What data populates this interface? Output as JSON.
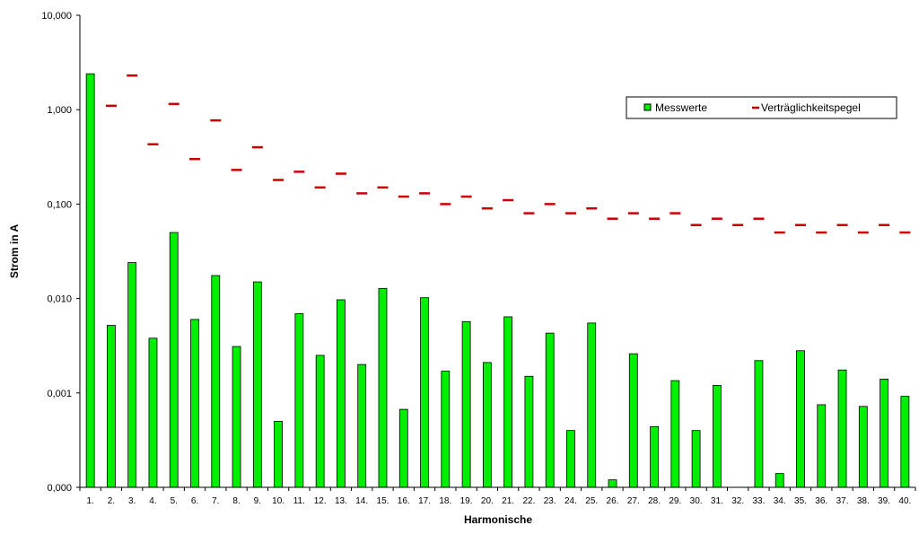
{
  "chart_data": {
    "type": "bar",
    "y_scale": "log",
    "ylim": [
      0.0001,
      10
    ],
    "yticks": [
      "10,000",
      "1,000",
      "0,100",
      "0,010",
      "0,001",
      "0,000"
    ],
    "xlabel": "Harmonische",
    "ylabel": "Strom in A",
    "categories": [
      "1.",
      "2.",
      "3.",
      "4.",
      "5.",
      "6.",
      "7.",
      "8.",
      "9.",
      "10.",
      "11.",
      "12.",
      "13.",
      "14.",
      "15.",
      "16.",
      "17.",
      "18.",
      "19.",
      "20.",
      "21.",
      "22.",
      "23.",
      "24.",
      "25.",
      "26.",
      "27.",
      "28.",
      "29.",
      "30.",
      "31.",
      "32.",
      "33.",
      "34.",
      "35.",
      "36.",
      "37.",
      "38.",
      "39.",
      "40."
    ],
    "legend_position": "top-right",
    "series": [
      {
        "name": "Messwerte",
        "kind": "bar",
        "color": "#00ee00",
        "values": [
          2.4,
          0.0052,
          0.024,
          0.0038,
          0.05,
          0.006,
          0.0175,
          0.0031,
          0.015,
          0.0005,
          0.0069,
          0.0025,
          0.0097,
          0.002,
          0.0128,
          0.00067,
          0.0102,
          0.0017,
          0.0057,
          0.0021,
          0.0064,
          0.0015,
          0.0043,
          0.0004,
          0.0055,
          0.00012,
          0.0026,
          0.00044,
          0.00135,
          0.0004,
          0.0012,
          null,
          0.0022,
          0.00014,
          0.0028,
          0.00075,
          0.00175,
          0.00072,
          0.0014,
          0.00092
        ]
      },
      {
        "name": "Verträglichkeitspegel",
        "kind": "dash",
        "color": "#cc0000",
        "values": [
          null,
          1.1,
          2.3,
          0.43,
          1.15,
          0.3,
          0.77,
          0.23,
          0.4,
          0.18,
          0.22,
          0.15,
          0.21,
          0.13,
          0.15,
          0.12,
          0.13,
          0.1,
          0.12,
          0.09,
          0.11,
          0.08,
          0.1,
          0.08,
          0.09,
          0.07,
          0.08,
          0.07,
          0.08,
          0.06,
          0.07,
          0.06,
          0.07,
          0.05,
          0.06,
          0.05,
          0.06,
          0.05,
          0.06,
          0.05
        ]
      }
    ]
  }
}
